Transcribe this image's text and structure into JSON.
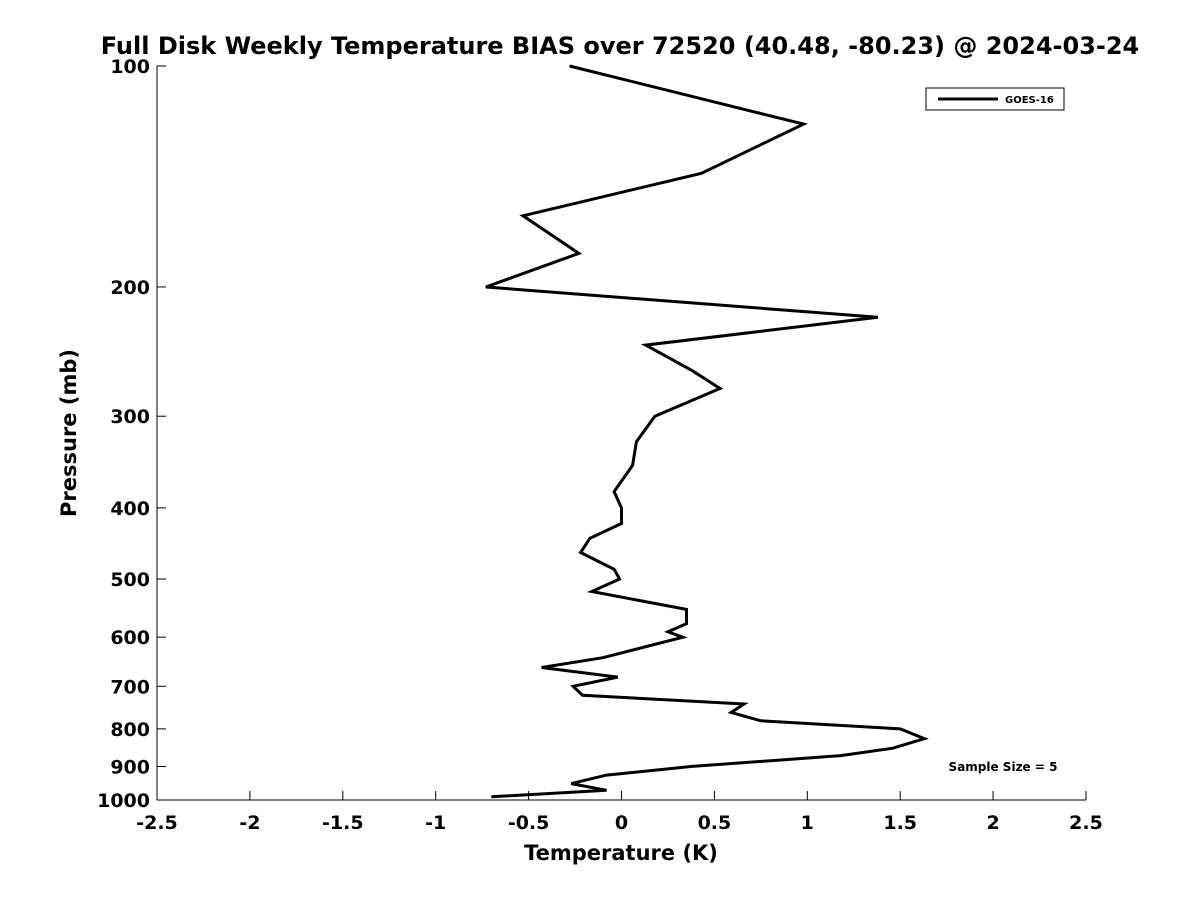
{
  "chart_data": {
    "type": "line",
    "title": "Full Disk Weekly Temperature BIAS over 72520 (40.48, -80.23) @ 2024-03-24",
    "xlabel": "Temperature (K)",
    "ylabel": "Pressure (mb)",
    "xlim": [
      -2.5,
      2.5
    ],
    "ylim": [
      100,
      1000
    ],
    "y_scale": "log",
    "y_reversed": true,
    "grid": false,
    "legend_position": "top-right",
    "x_ticks": [
      -2.5,
      -2,
      -1.5,
      -1,
      -0.5,
      0,
      0.5,
      1,
      1.5,
      2,
      2.5
    ],
    "x_tick_labels": [
      "-2.5",
      "-2",
      "-1.5",
      "-1",
      "-0.5",
      "0",
      "0.5",
      "1",
      "1.5",
      "2",
      "2.5"
    ],
    "y_ticks": [
      100,
      200,
      300,
      400,
      500,
      600,
      700,
      800,
      900,
      1000
    ],
    "y_tick_labels": [
      "100",
      "200",
      "300",
      "400",
      "500",
      "600",
      "700",
      "800",
      "900",
      "1000"
    ],
    "annotation": "Sample Size = 5",
    "line_color": "#000000",
    "series": [
      {
        "name": "GOES-16",
        "points": [
          {
            "x": -0.28,
            "p": 100
          },
          {
            "x": 0.98,
            "p": 120
          },
          {
            "x": 0.43,
            "p": 140
          },
          {
            "x": -0.53,
            "p": 160
          },
          {
            "x": -0.23,
            "p": 180
          },
          {
            "x": -0.73,
            "p": 200
          },
          {
            "x": 1.38,
            "p": 220
          },
          {
            "x": 0.13,
            "p": 240
          },
          {
            "x": 0.38,
            "p": 260
          },
          {
            "x": 0.53,
            "p": 275
          },
          {
            "x": 0.18,
            "p": 300
          },
          {
            "x": 0.08,
            "p": 325
          },
          {
            "x": 0.06,
            "p": 350
          },
          {
            "x": -0.04,
            "p": 380
          },
          {
            "x": 0.0,
            "p": 400
          },
          {
            "x": 0.0,
            "p": 420
          },
          {
            "x": -0.17,
            "p": 440
          },
          {
            "x": -0.22,
            "p": 460
          },
          {
            "x": -0.04,
            "p": 485
          },
          {
            "x": -0.01,
            "p": 500
          },
          {
            "x": -0.16,
            "p": 520
          },
          {
            "x": 0.35,
            "p": 550
          },
          {
            "x": 0.35,
            "p": 575
          },
          {
            "x": 0.25,
            "p": 590
          },
          {
            "x": 0.33,
            "p": 600
          },
          {
            "x": -0.1,
            "p": 640
          },
          {
            "x": -0.43,
            "p": 660
          },
          {
            "x": -0.02,
            "p": 680
          },
          {
            "x": -0.26,
            "p": 700
          },
          {
            "x": -0.21,
            "p": 720
          },
          {
            "x": 0.66,
            "p": 740
          },
          {
            "x": 0.59,
            "p": 760
          },
          {
            "x": 0.75,
            "p": 780
          },
          {
            "x": 1.5,
            "p": 800
          },
          {
            "x": 1.63,
            "p": 825
          },
          {
            "x": 1.46,
            "p": 850
          },
          {
            "x": 1.18,
            "p": 870
          },
          {
            "x": 0.38,
            "p": 900
          },
          {
            "x": -0.08,
            "p": 925
          },
          {
            "x": -0.27,
            "p": 950
          },
          {
            "x": -0.08,
            "p": 970
          },
          {
            "x": -0.7,
            "p": 990
          }
        ]
      }
    ]
  }
}
